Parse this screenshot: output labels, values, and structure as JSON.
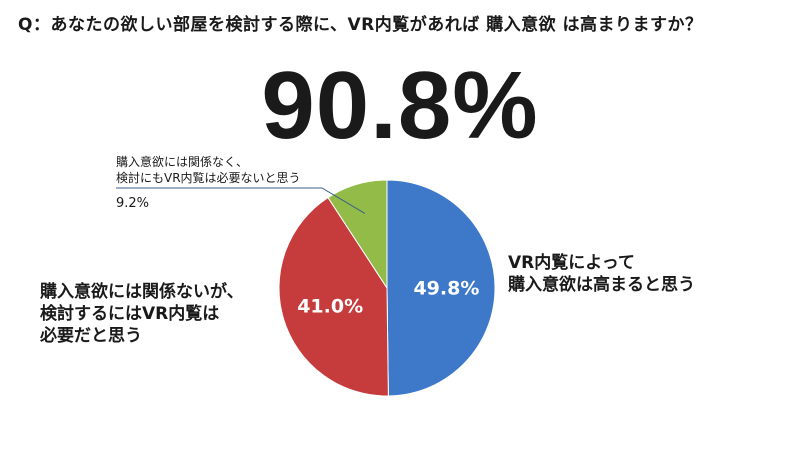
{
  "question": "Q：あなたの欲しい部屋を検討する際に、VR内覧があれば 購入意欲 は高まりますか？",
  "headline": "90.8%",
  "chart_data": {
    "type": "pie",
    "title": "",
    "slices": [
      {
        "label_lines": [
          "VR内覧によって",
          "購入意欲は高まると思う"
        ],
        "value": 49.8,
        "value_label": "49.8%",
        "color": "#3d78c9"
      },
      {
        "label_lines": [
          "購入意欲には関係ないが、",
          "検討するにはVR内覧は",
          "必要だと思う"
        ],
        "value": 41.0,
        "value_label": "41.0%",
        "color": "#c63b3b"
      },
      {
        "label_lines": [
          "購入意欲には関係なく、",
          "検討にもVR内覧は必要ないと思う"
        ],
        "value": 9.2,
        "value_label": "9.2%",
        "color": "#93bb48"
      }
    ]
  }
}
